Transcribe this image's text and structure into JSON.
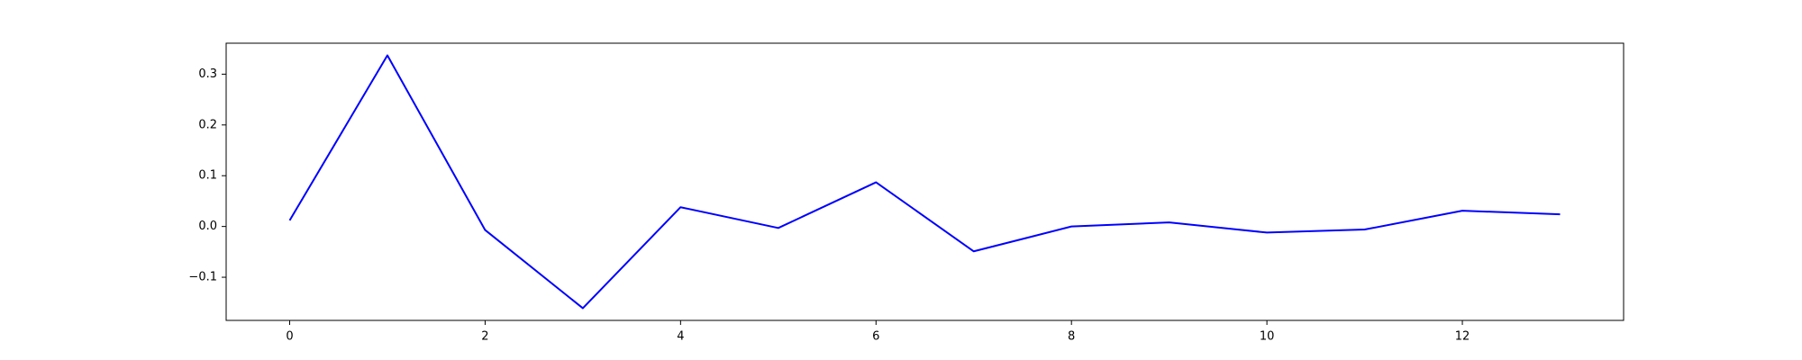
{
  "chart_data": {
    "type": "line",
    "title": "",
    "xlabel": "",
    "ylabel": "",
    "x": [
      0,
      1,
      2,
      3,
      4,
      5,
      6,
      7,
      8,
      9,
      10,
      11,
      12,
      13
    ],
    "series": [
      {
        "values": [
          0.012,
          0.337,
          -0.007,
          -0.161,
          0.038,
          -0.003,
          0.087,
          -0.049,
          0.0,
          0.008,
          -0.012,
          -0.006,
          0.031,
          0.024
        ],
        "color": "#0000ff"
      }
    ],
    "xlim": [
      -0.65,
      13.65
    ],
    "ylim": [
      -0.185,
      0.361
    ],
    "xticks": [
      0,
      2,
      4,
      6,
      8,
      10,
      12
    ],
    "xtick_labels": [
      "0",
      "2",
      "4",
      "6",
      "8",
      "10",
      "12"
    ],
    "yticks": [
      -0.1,
      0.0,
      0.1,
      0.2,
      0.3
    ],
    "ytick_labels": [
      "−0.1",
      "0.0",
      "0.1",
      "0.2",
      "0.3"
    ],
    "grid": false,
    "legend": "none"
  }
}
